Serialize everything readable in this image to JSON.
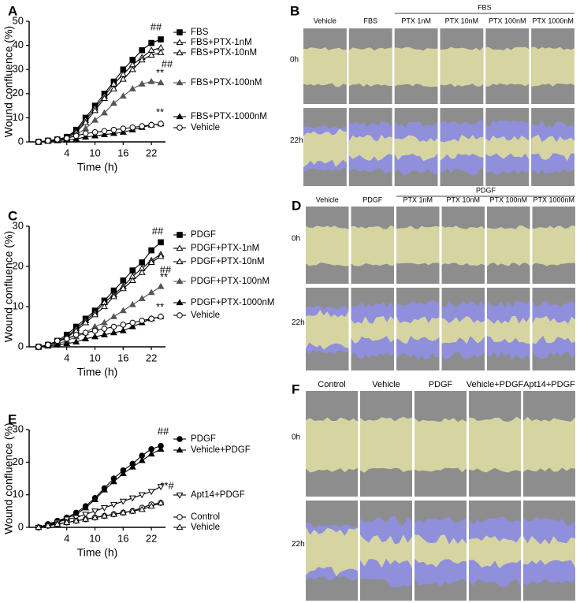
{
  "chart_data": [
    {
      "type": "line",
      "label": "A",
      "xlabel": "Time (h)",
      "ylabel": "Wound confluence (%)",
      "x": [
        -2,
        0,
        2,
        4,
        6,
        8,
        10,
        12,
        14,
        16,
        18,
        20,
        22,
        24
      ],
      "xlim": [
        -4,
        25
      ],
      "xticks": [
        4,
        10,
        16,
        22
      ],
      "ylim": [
        0,
        50
      ],
      "yticks": [
        0,
        10,
        20,
        30,
        40,
        50
      ],
      "series": [
        {
          "name": "FBS",
          "color": "#000000",
          "marker": "square",
          "filled": true,
          "values": [
            0,
            0.5,
            1,
            2,
            5,
            10,
            15,
            20,
            25,
            30,
            34,
            38,
            41,
            42.5
          ]
        },
        {
          "name": "FBS+PTX-1nM",
          "color": "#000000",
          "marker": "triangle",
          "filled": false,
          "values": [
            0,
            0.5,
            1,
            2,
            4.5,
            9,
            14,
            19,
            24,
            28,
            32,
            35,
            38,
            39
          ]
        },
        {
          "name": "FBS+PTX-10nM",
          "color": "#000000",
          "marker": "triangle",
          "filled": false,
          "values": [
            0,
            0.5,
            1,
            1.5,
            4,
            8,
            13,
            18,
            22,
            26,
            30,
            34,
            36,
            37
          ]
        },
        {
          "name": "FBS+PTX-100nM",
          "color": "#555555",
          "marker": "triangle",
          "filled": true,
          "values": [
            0,
            0.5,
            0.8,
            1.2,
            3,
            5.5,
            9,
            12,
            16,
            19,
            22,
            24,
            25,
            24.5
          ]
        },
        {
          "name": "FBS+PTX-1000nM",
          "color": "#000000",
          "marker": "triangle",
          "filled": true,
          "values": [
            0,
            0.3,
            0.5,
            0.8,
            1.2,
            2,
            2.5,
            3,
            3.5,
            4,
            5,
            6,
            7,
            7.5
          ]
        },
        {
          "name": "Vehicle",
          "color": "#000000",
          "marker": "circle",
          "filled": false,
          "values": [
            0,
            0.5,
            1,
            1.5,
            2.5,
            3.5,
            4,
            4.5,
            5,
            5.5,
            6,
            6.5,
            7,
            7.5
          ]
        }
      ],
      "annotations": [
        "##",
        "##",
        "**",
        "**"
      ]
    },
    {
      "type": "line",
      "label": "C",
      "xlabel": "Time (h)",
      "ylabel": "Wound confluence (%)",
      "x": [
        -2,
        0,
        2,
        4,
        6,
        8,
        10,
        12,
        14,
        16,
        18,
        20,
        22,
        24
      ],
      "xlim": [
        -4,
        25
      ],
      "xticks": [
        4,
        10,
        16,
        22
      ],
      "ylim": [
        0,
        30
      ],
      "yticks": [
        0,
        10,
        20,
        30
      ],
      "series": [
        {
          "name": "PDGF",
          "color": "#000000",
          "marker": "square",
          "filled": true,
          "values": [
            0,
            0.5,
            1.5,
            3,
            5,
            7,
            9,
            11.5,
            14,
            16.5,
            19,
            21,
            24,
            26
          ]
        },
        {
          "name": "PDGF+PTX-1nM",
          "color": "#000000",
          "marker": "triangle",
          "filled": false,
          "values": [
            0,
            0.5,
            1.3,
            2.5,
            4.5,
            6.5,
            8.5,
            11,
            13,
            15,
            17.5,
            19.5,
            21.5,
            23
          ]
        },
        {
          "name": "PDGF+PTX-10nM",
          "color": "#000000",
          "marker": "triangle",
          "filled": false,
          "values": [
            0,
            0.5,
            1.2,
            2.3,
            4,
            6,
            8,
            10,
            12.5,
            14.5,
            16.5,
            18.5,
            21,
            22.5
          ]
        },
        {
          "name": "PDGF+PTX-100nM",
          "color": "#555555",
          "marker": "triangle",
          "filled": true,
          "values": [
            0,
            0.3,
            0.8,
            1.5,
            2.5,
            3.5,
            5,
            6,
            7.5,
            9,
            10.5,
            12,
            13.5,
            15
          ]
        },
        {
          "name": "PDGF+PTX-1000nM",
          "color": "#000000",
          "marker": "triangle",
          "filled": true,
          "values": [
            0,
            0.2,
            0.5,
            0.8,
            1.2,
            2,
            2.5,
            3,
            3.5,
            4,
            5,
            6,
            7,
            7.5
          ]
        },
        {
          "name": "Vehicle",
          "color": "#000000",
          "marker": "circle",
          "filled": false,
          "values": [
            0,
            0.5,
            1.5,
            2,
            3,
            3.5,
            4,
            4.5,
            5,
            5.5,
            6,
            6.5,
            7,
            7.5
          ]
        }
      ],
      "annotations": [
        "##",
        "##",
        "**",
        "**"
      ]
    },
    {
      "type": "line",
      "label": "E",
      "xlabel": "Time (h)",
      "ylabel": "Wound confluence (%)",
      "x": [
        -2,
        0,
        2,
        4,
        6,
        8,
        10,
        12,
        14,
        16,
        18,
        20,
        22,
        24
      ],
      "xlim": [
        -4,
        25
      ],
      "xticks": [
        4,
        10,
        16,
        22
      ],
      "ylim": [
        0,
        30
      ],
      "yticks": [
        0,
        10,
        20,
        30
      ],
      "series": [
        {
          "name": "PDGF",
          "color": "#000000",
          "marker": "circle",
          "filled": true,
          "values": [
            0,
            1,
            2,
            3,
            4.5,
            6.5,
            9,
            12,
            15,
            17.5,
            19.5,
            22,
            24,
            25
          ]
        },
        {
          "name": "Vehicle+PDGF",
          "color": "#000000",
          "marker": "triangle",
          "filled": true,
          "values": [
            0,
            0.8,
            1.8,
            2.8,
            4,
            6,
            8.5,
            11.5,
            14,
            16.5,
            18.5,
            20.5,
            22.5,
            24
          ]
        },
        {
          "name": "Apt14+PDGF",
          "color": "#000000",
          "marker": "downtriangle",
          "filled": false,
          "values": [
            0,
            0.5,
            1.5,
            2.5,
            3,
            4,
            5,
            6,
            7,
            8,
            9,
            10,
            11,
            12.5
          ]
        },
        {
          "name": "Control",
          "color": "#000000",
          "marker": "circle",
          "filled": false,
          "values": [
            0,
            0.5,
            1,
            1.5,
            2,
            2.5,
            3,
            3.5,
            4,
            4.5,
            5,
            6,
            7,
            7.5
          ]
        },
        {
          "name": "Vehicle",
          "color": "#000000",
          "marker": "triangle",
          "filled": false,
          "values": [
            0,
            0.5,
            1,
            1.5,
            2,
            2.5,
            3,
            3.5,
            4,
            4.5,
            5,
            5.5,
            6.5,
            7.5
          ]
        }
      ],
      "annotations": [
        "##",
        "**#"
      ]
    }
  ],
  "panels": [
    {
      "label": "B",
      "group": "FBS",
      "columns": [
        "Vehicle",
        "FBS",
        "PTX 1nM",
        "PTX 10nM",
        "PTX 100nM",
        "PTX 1000nM"
      ],
      "rows": [
        "0h",
        "22h"
      ]
    },
    {
      "label": "D",
      "group": "PDGF",
      "columns": [
        "Vehicle",
        "PDGF",
        "PTX 1nM",
        "PTX 10nM",
        "PTX 100nM",
        "PTX 1000nM"
      ],
      "rows": [
        "0h",
        "22h"
      ]
    },
    {
      "label": "F",
      "columns": [
        "Control",
        "Vehicle",
        "PDGF",
        "Vehicle+PDGF",
        "Apt14+PDGF"
      ],
      "rows": [
        "0h",
        "22h"
      ]
    }
  ]
}
